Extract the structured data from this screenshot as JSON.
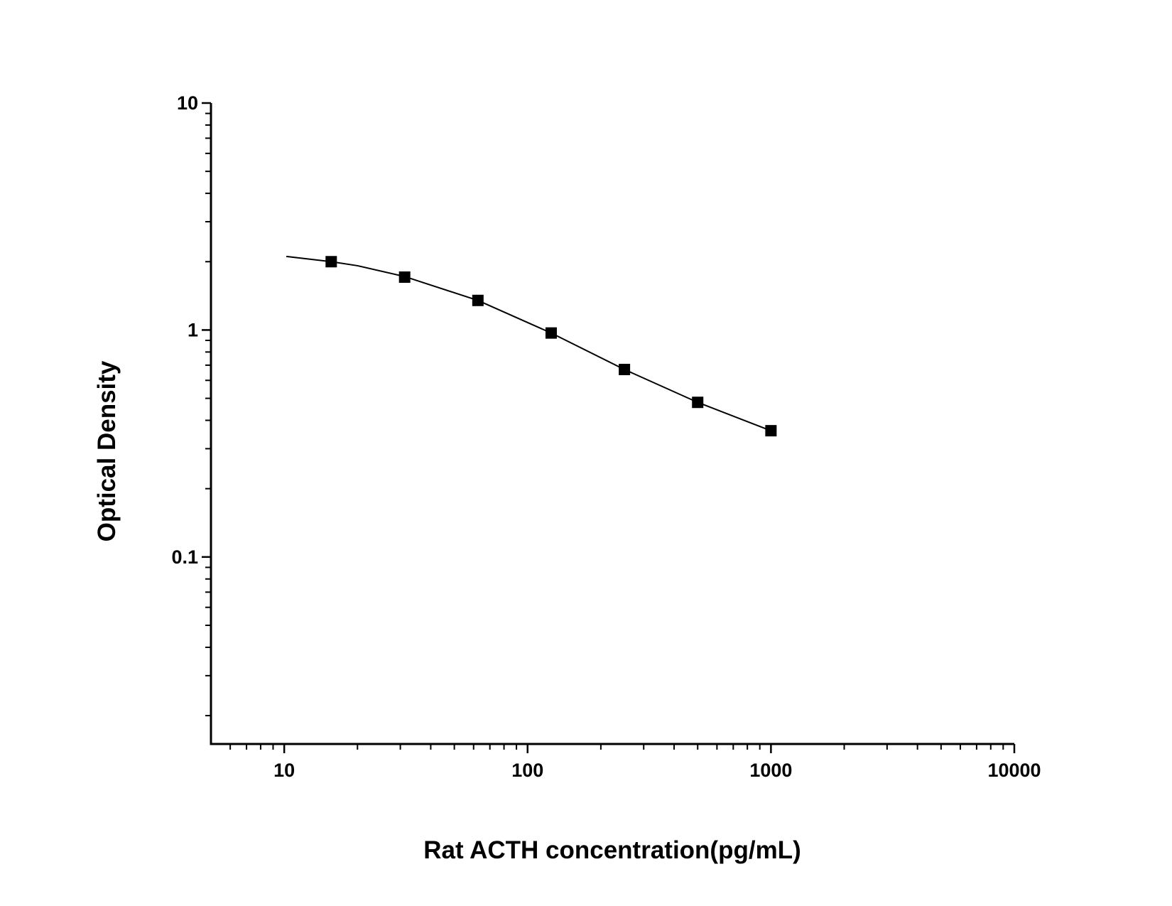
{
  "chart_data": {
    "type": "scatter",
    "x_label": "Rat ACTH concentration(pg/mL)",
    "y_label": "Optical Density",
    "xlog": true,
    "ylog": true,
    "xlim": [
      5,
      10000
    ],
    "ylim": [
      0.015,
      10
    ],
    "xticks": [
      10,
      100,
      1000,
      10000
    ],
    "xminorticks": [
      6,
      7,
      8,
      9,
      20,
      30,
      40,
      50,
      60,
      70,
      80,
      90,
      200,
      300,
      400,
      500,
      600,
      700,
      800,
      900,
      2000,
      3000,
      4000,
      5000,
      6000,
      7000,
      8000,
      9000
    ],
    "yticks": [
      0.1,
      1,
      10
    ],
    "yminorticks": [
      0.02,
      0.03,
      0.04,
      0.05,
      0.06,
      0.07,
      0.08,
      0.09,
      0.2,
      0.3,
      0.4,
      0.5,
      0.6,
      0.7,
      0.8,
      0.9,
      2,
      3,
      4,
      5,
      6,
      7,
      8,
      9
    ],
    "color": "#000000",
    "x": [
      15.6,
      31.25,
      62.5,
      125,
      250,
      500,
      1000
    ],
    "values": [
      2.0,
      1.71,
      1.35,
      0.97,
      0.67,
      0.48,
      0.36
    ],
    "curve": {
      "x": [
        10.2,
        15.6,
        20,
        31.25,
        62.5,
        125,
        250,
        500,
        1000
      ],
      "y": [
        2.11,
        2.0,
        1.92,
        1.72,
        1.35,
        0.97,
        0.67,
        0.48,
        0.36
      ]
    }
  }
}
